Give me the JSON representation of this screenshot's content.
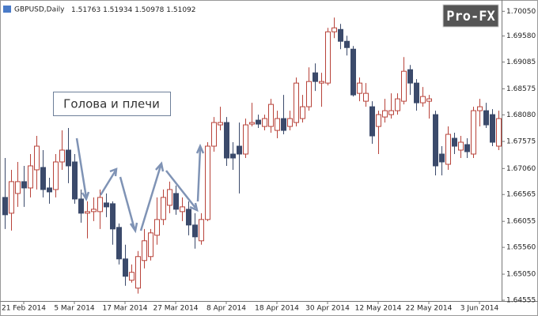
{
  "chart_data": {
    "type": "candlestick",
    "title": "GBPUSD,Daily",
    "header_values": [
      1.51763,
      1.51934,
      1.50978,
      1.51092
    ],
    "annotation": "Голова и плечи",
    "watermark": "Pro-FX",
    "bull_color": "#b8433a",
    "bear_color": "#3b4a6b",
    "categories": [
      null,
      null,
      null,
      "21 Feb 2014",
      null,
      null,
      null,
      null,
      null,
      null,
      null,
      "5 Mar 2014",
      null,
      null,
      null,
      null,
      null,
      null,
      null,
      "17 Mar 2014",
      null,
      null,
      null,
      null,
      null,
      null,
      null,
      "27 Mar 2014",
      null,
      null,
      null,
      null,
      null,
      null,
      null,
      "8 Apr 2014",
      null,
      null,
      null,
      null,
      null,
      null,
      null,
      "18 Apr 2014",
      null,
      null,
      null,
      null,
      null,
      null,
      null,
      "30 Apr 2014",
      null,
      null,
      null,
      null,
      null,
      null,
      null,
      "12 May 2014",
      null,
      null,
      null,
      null,
      null,
      null,
      null,
      "22 May 2014",
      null,
      null,
      null,
      null,
      null,
      null,
      null,
      "3 Jun 2014",
      null,
      null,
      null
    ],
    "open": [
      1.6651,
      1.6621,
      1.66585,
      1.6681,
      1.6669,
      1.67035,
      1.6708,
      1.6669,
      1.6666,
      1.67185,
      1.6741,
      1.67185,
      1.6648,
      1.6621,
      1.6624,
      1.6624,
      1.66405,
      1.6639,
      1.6594,
      1.6534,
      1.64935,
      1.64785,
      1.6531,
      1.65385,
      1.6579,
      1.6609,
      1.6636,
      1.66585,
      1.6624,
      1.66285,
      1.65985,
      1.65685,
      1.6609,
      1.67485,
      1.6789,
      1.67935,
      1.67335,
      1.67485,
      1.67335,
      1.67905,
      1.6798,
      1.6786,
      1.6786,
      1.67785,
      1.6801,
      1.6786,
      1.67935,
      1.6801,
      1.68235,
      1.6888,
      1.68685,
      1.68685,
      1.6966,
      1.69705,
      1.6948,
      1.6933,
      1.6849,
      1.6834,
      1.68235,
      1.6786,
      1.6804,
      1.68085,
      1.6816,
      1.6834,
      1.6894,
      1.68685,
      1.6831,
      1.6834,
      1.68085,
      1.67335,
      1.6714,
      1.67635,
      1.6741,
      1.67515,
      1.67335,
      1.6816,
      1.6816,
      1.68085,
      1.67485
    ],
    "high": [
      1.6726,
      1.67035,
      1.67185,
      1.6711,
      1.67335,
      1.6768,
      1.6741,
      1.66885,
      1.67335,
      1.67785,
      1.6783,
      1.67335,
      1.6666,
      1.66435,
      1.6651,
      1.6666,
      1.66585,
      1.66435,
      1.66015,
      1.6561,
      1.65235,
      1.6549,
      1.6591,
      1.6591,
      1.6651,
      1.6666,
      1.6681,
      1.66735,
      1.6651,
      1.66435,
      1.6621,
      1.6621,
      1.6756,
      1.6804,
      1.68235,
      1.6804,
      1.6756,
      1.67935,
      1.6801,
      1.6831,
      1.68085,
      1.68085,
      1.68385,
      1.6816,
      1.6846,
      1.6816,
      1.6879,
      1.6846,
      1.68985,
      1.6906,
      1.6888,
      1.69735,
      1.6993,
      1.6981,
      1.69585,
      1.6939,
      1.6879,
      1.68685,
      1.6834,
      1.6816,
      1.68385,
      1.6849,
      1.6849,
      1.6918,
      1.6903,
      1.6876,
      1.6861,
      1.6846,
      1.6816,
      1.67485,
      1.6786,
      1.6774,
      1.6768,
      1.67635,
      1.68235,
      1.68385,
      1.6831,
      1.6819,
      1.6816
    ],
    "low": [
      1.6591,
      1.6588,
      1.6633,
      1.6633,
      1.6651,
      1.6666,
      1.6651,
      1.6639,
      1.6651,
      1.67035,
      1.6678,
      1.6639,
      1.6603,
      1.6573,
      1.6606,
      1.6591,
      1.66135,
      1.6561,
      1.65235,
      1.6483,
      1.6489,
      1.6468,
      1.6516,
      1.6531,
      1.6561,
      1.65985,
      1.6621,
      1.6618,
      1.6606,
      1.6579,
      1.65535,
      1.6561,
      1.6606,
      1.6738,
      1.67785,
      1.6711,
      1.67035,
      1.66585,
      1.6726,
      1.6786,
      1.6783,
      1.67785,
      1.6774,
      1.67635,
      1.6771,
      1.67785,
      1.6786,
      1.67935,
      1.6816,
      1.68535,
      1.68235,
      1.6864,
      1.6954,
      1.6933,
      1.6921,
      1.6843,
      1.6834,
      1.68235,
      1.6753,
      1.67335,
      1.67935,
      1.6801,
      1.68085,
      1.6828,
      1.6846,
      1.6816,
      1.68235,
      1.6801,
      1.6693,
      1.6693,
      1.67035,
      1.67335,
      1.6726,
      1.6726,
      1.6726,
      1.6786,
      1.6783,
      1.67485,
      1.6741
    ],
    "close": [
      1.6618,
      1.6681,
      1.6681,
      1.6669,
      1.6711,
      1.67485,
      1.6666,
      1.66615,
      1.67185,
      1.6741,
      1.6711,
      1.6648,
      1.6621,
      1.6624,
      1.66285,
      1.6651,
      1.6633,
      1.6591,
      1.6534,
      1.6501,
      1.65085,
      1.65385,
      1.65685,
      1.65835,
      1.6609,
      1.6651,
      1.6666,
      1.66285,
      1.6633,
      1.65985,
      1.6576,
      1.6609,
      1.67485,
      1.67935,
      1.67935,
      1.6726,
      1.6726,
      1.67335,
      1.6789,
      1.67935,
      1.67905,
      1.6801,
      1.6828,
      1.6801,
      1.67785,
      1.6801,
      1.68685,
      1.68235,
      1.68715,
      1.68715,
      1.68715,
      1.6966,
      1.69735,
      1.6948,
      1.6936,
      1.6846,
      1.68685,
      1.6849,
      1.6768,
      1.68085,
      1.6816,
      1.6816,
      1.68385,
      1.6891,
      1.68685,
      1.6831,
      1.6843,
      1.68385,
      1.6711,
      1.67185,
      1.6771,
      1.67485,
      1.6756,
      1.6738,
      1.6816,
      1.68235,
      1.6789,
      1.6756,
      1.6801
    ],
    "ylim": [
      1.6454,
      1.7019
    ],
    "yticks": [
      {
        "value": 1.7005,
        "label": "1.70050"
      },
      {
        "value": 1.6958,
        "label": "1.69580"
      },
      1.69085,
      1.68575,
      {
        "value": 1.6808,
        "label": "1.68080"
      },
      1.67575,
      {
        "value": 1.6706,
        "label": "1.67060"
      },
      1.66565,
      1.66055,
      {
        "value": 1.6556,
        "label": "1.65560"
      },
      {
        "value": 1.6505,
        "label": "1.65050"
      },
      1.64555
    ],
    "grid": false
  }
}
